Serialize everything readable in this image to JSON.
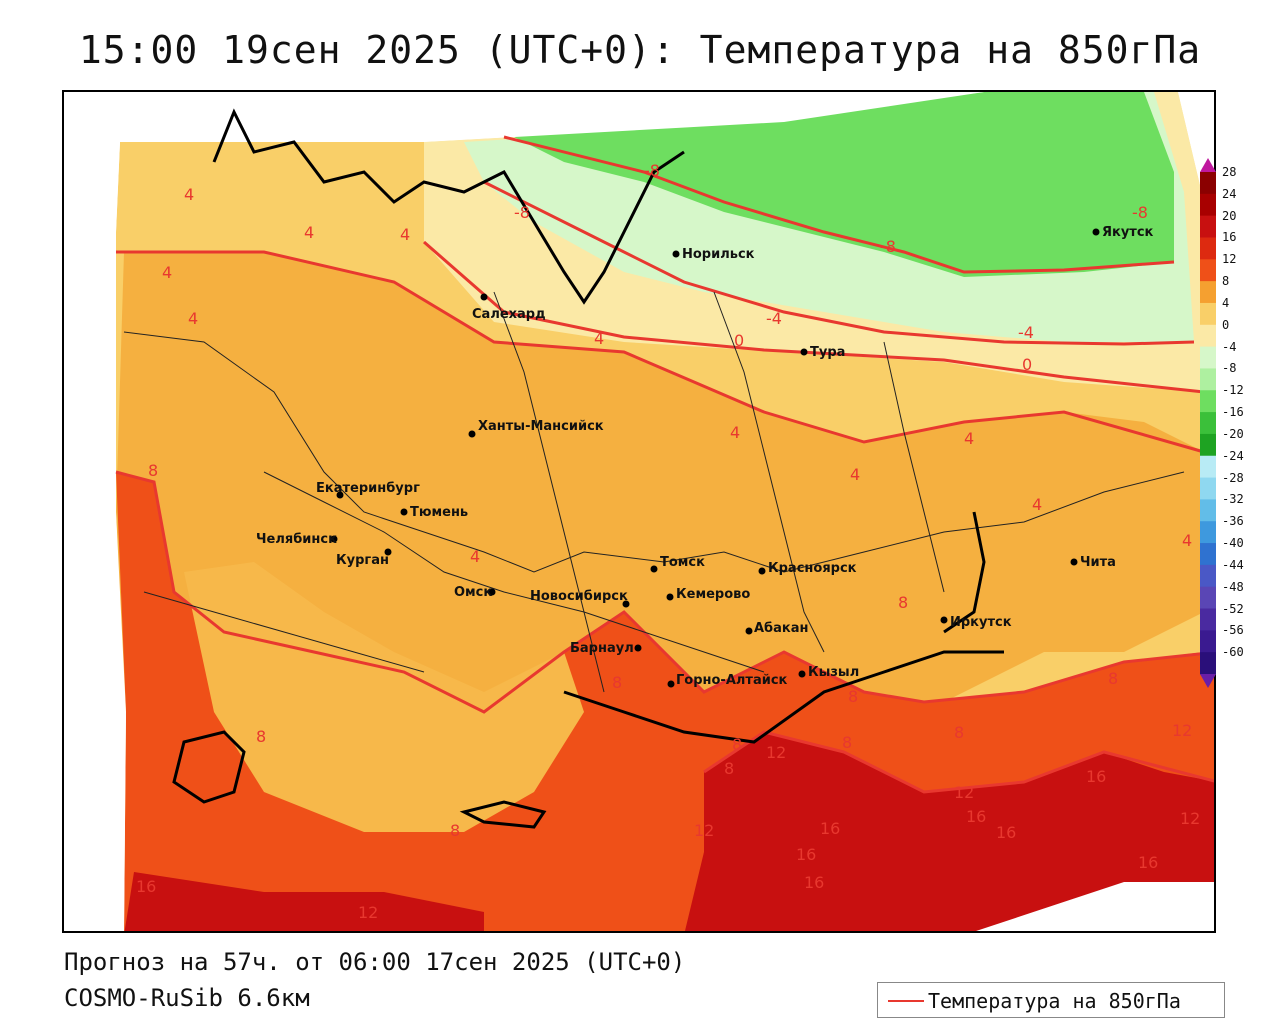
{
  "title": "15:00 19сен 2025 (UTC+0): Температура на 850гПа",
  "footer": {
    "forecast": "Прогноз на 57ч. от 06:00 17сен 2025 (UTC+0)",
    "model": "COSMO-RuSib 6.6км"
  },
  "legend": {
    "label": "Температура на 850гПа",
    "line_color": "#e8382f"
  },
  "colorbar": {
    "labels": [
      "28",
      "24",
      "20",
      "16",
      "12",
      "8",
      "4",
      "0",
      "-4",
      "-8",
      "-12",
      "-16",
      "-20",
      "-24",
      "-28",
      "-32",
      "-36",
      "-40",
      "-44",
      "-48",
      "-52",
      "-56",
      "-60"
    ],
    "colors": [
      "#8b0000",
      "#a80000",
      "#c81010",
      "#dd2a10",
      "#ef5018",
      "#f5a030",
      "#f9cf68",
      "#fbe9a6",
      "#d6f7c9",
      "#aef0a0",
      "#6ede60",
      "#3bc03a",
      "#1ea322",
      "#b8ebf5",
      "#8fd8f0",
      "#62bde8",
      "#3e99de",
      "#2f72d0",
      "#4a58c6",
      "#5a46b5",
      "#4a2aa0",
      "#3a1a90",
      "#2a0f7a"
    ]
  },
  "cities": [
    {
      "name": "Норильск"
    },
    {
      "name": "Якутск"
    },
    {
      "name": "Салехард"
    },
    {
      "name": "Тура"
    },
    {
      "name": "Ханты-Мансийск"
    },
    {
      "name": "Екатеринбург"
    },
    {
      "name": "Тюмень"
    },
    {
      "name": "Челябинск"
    },
    {
      "name": "Курган"
    },
    {
      "name": "Омск"
    },
    {
      "name": "Новосибирск"
    },
    {
      "name": "Томск"
    },
    {
      "name": "Красноярск"
    },
    {
      "name": "Кемерово"
    },
    {
      "name": "Абакан"
    },
    {
      "name": "Барнаул"
    },
    {
      "name": "Горно-Алтайск"
    },
    {
      "name": "Кызыл"
    },
    {
      "name": "Иркутск"
    },
    {
      "name": "Чита"
    }
  ],
  "isolines": [
    "-8",
    "-8",
    "-8",
    "-8",
    "-4",
    "-4",
    "0",
    "0",
    "4",
    "4",
    "4",
    "4",
    "4",
    "4",
    "4",
    "4",
    "4",
    "4",
    "4",
    "4",
    "8",
    "8",
    "8",
    "8",
    "8",
    "8",
    "8",
    "8",
    "8",
    "8",
    "8",
    "12",
    "12",
    "12",
    "12",
    "12",
    "12",
    "16",
    "16",
    "16",
    "16",
    "16",
    "16",
    "16",
    "16"
  ]
}
